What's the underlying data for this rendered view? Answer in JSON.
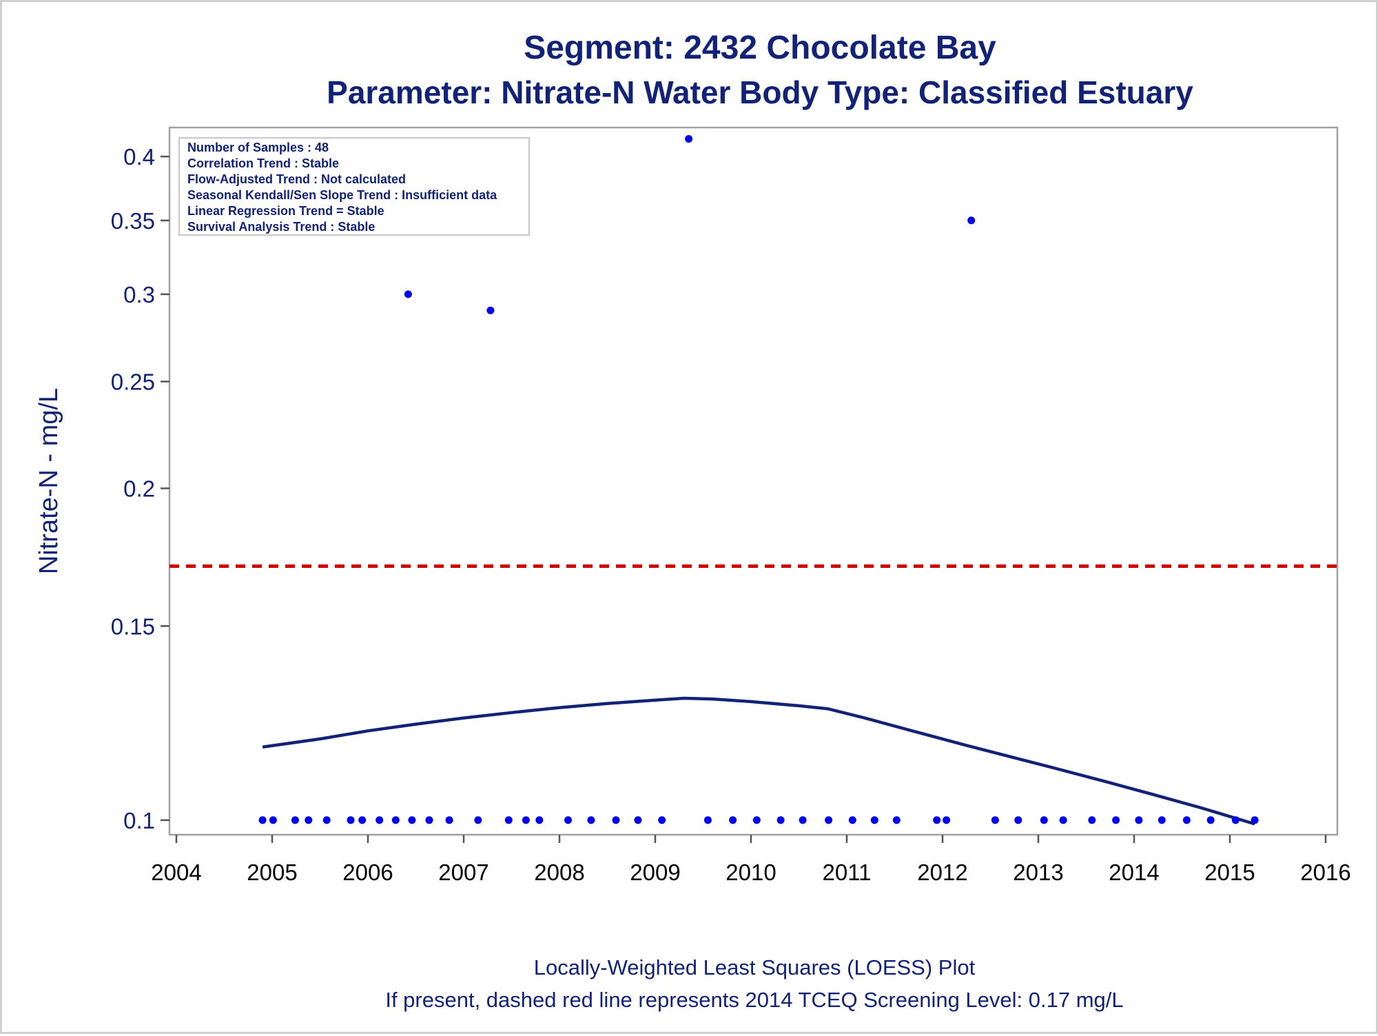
{
  "chart_data": {
    "type": "scatter",
    "title": "Segment: 2432  Chocolate Bay",
    "subtitle": "Parameter: Nitrate-N   Water Body Type: Classified Estuary",
    "xlabel": "",
    "ylabel": "Nitrate-N - mg/L",
    "x_ticks": [
      "2004",
      "2005",
      "2006",
      "2007",
      "2008",
      "2009",
      "2010",
      "2011",
      "2012",
      "2013",
      "2014",
      "2015",
      "2016"
    ],
    "y_ticks": [
      "0.1",
      "0.15",
      "0.2",
      "0.25",
      "0.3",
      "0.35",
      "0.4"
    ],
    "y_scale": "log",
    "xlim": [
      2004,
      2016
    ],
    "ylim": [
      0.097,
      0.425
    ],
    "grid": false,
    "info_box": [
      "Number of Samples : 48",
      "Correlation Trend : Stable",
      "Flow-Adjusted Trend : Not calculated",
      "Seasonal Kendall/Sen Slope Trend : Insufficient data",
      "Linear Regression Trend = Stable",
      "Survival Analysis Trend : Stable"
    ],
    "footnotes": [
      "Locally-Weighted Least Squares (LOESS) Plot",
      "If present, dashed red line represents 2014 TCEQ Screening Level: 0.17 mg/L"
    ],
    "screening_level": 0.17,
    "screening_color": "#cc0000",
    "point_color": "#0000ee",
    "line_color": "#112277",
    "points": [
      {
        "x": 2004.9,
        "y": 0.1
      },
      {
        "x": 2005.01,
        "y": 0.1
      },
      {
        "x": 2005.24,
        "y": 0.1
      },
      {
        "x": 2005.38,
        "y": 0.1
      },
      {
        "x": 2005.57,
        "y": 0.1
      },
      {
        "x": 2005.82,
        "y": 0.1
      },
      {
        "x": 2005.94,
        "y": 0.1
      },
      {
        "x": 2006.12,
        "y": 0.1
      },
      {
        "x": 2006.29,
        "y": 0.1
      },
      {
        "x": 2006.42,
        "y": 0.3
      },
      {
        "x": 2006.46,
        "y": 0.1
      },
      {
        "x": 2006.64,
        "y": 0.1
      },
      {
        "x": 2006.85,
        "y": 0.1
      },
      {
        "x": 2007.15,
        "y": 0.1
      },
      {
        "x": 2007.28,
        "y": 0.29
      },
      {
        "x": 2007.47,
        "y": 0.1
      },
      {
        "x": 2007.65,
        "y": 0.1
      },
      {
        "x": 2007.79,
        "y": 0.1
      },
      {
        "x": 2008.09,
        "y": 0.1
      },
      {
        "x": 2008.33,
        "y": 0.1
      },
      {
        "x": 2008.59,
        "y": 0.1
      },
      {
        "x": 2008.82,
        "y": 0.1
      },
      {
        "x": 2009.07,
        "y": 0.1
      },
      {
        "x": 2009.35,
        "y": 0.415
      },
      {
        "x": 2009.55,
        "y": 0.1
      },
      {
        "x": 2009.81,
        "y": 0.1
      },
      {
        "x": 2010.06,
        "y": 0.1
      },
      {
        "x": 2010.31,
        "y": 0.1
      },
      {
        "x": 2010.54,
        "y": 0.1
      },
      {
        "x": 2010.81,
        "y": 0.1
      },
      {
        "x": 2011.06,
        "y": 0.1
      },
      {
        "x": 2011.29,
        "y": 0.1
      },
      {
        "x": 2011.52,
        "y": 0.1
      },
      {
        "x": 2011.94,
        "y": 0.1
      },
      {
        "x": 2012.04,
        "y": 0.1
      },
      {
        "x": 2012.3,
        "y": 0.35
      },
      {
        "x": 2012.55,
        "y": 0.1
      },
      {
        "x": 2012.79,
        "y": 0.1
      },
      {
        "x": 2013.06,
        "y": 0.1
      },
      {
        "x": 2013.26,
        "y": 0.1
      },
      {
        "x": 2013.56,
        "y": 0.1
      },
      {
        "x": 2013.81,
        "y": 0.1
      },
      {
        "x": 2014.05,
        "y": 0.1
      },
      {
        "x": 2014.29,
        "y": 0.1
      },
      {
        "x": 2014.55,
        "y": 0.1
      },
      {
        "x": 2014.8,
        "y": 0.1
      },
      {
        "x": 2015.06,
        "y": 0.1
      },
      {
        "x": 2015.26,
        "y": 0.1
      }
    ],
    "loess": [
      {
        "x": 2004.9,
        "y": 0.1165
      },
      {
        "x": 2005.5,
        "y": 0.1185
      },
      {
        "x": 2006.0,
        "y": 0.1205
      },
      {
        "x": 2006.5,
        "y": 0.1222
      },
      {
        "x": 2007.0,
        "y": 0.1238
      },
      {
        "x": 2007.5,
        "y": 0.1252
      },
      {
        "x": 2008.0,
        "y": 0.1265
      },
      {
        "x": 2008.5,
        "y": 0.1276
      },
      {
        "x": 2009.0,
        "y": 0.1285
      },
      {
        "x": 2009.3,
        "y": 0.129
      },
      {
        "x": 2009.6,
        "y": 0.1288
      },
      {
        "x": 2010.0,
        "y": 0.1281
      },
      {
        "x": 2010.5,
        "y": 0.127
      },
      {
        "x": 2010.8,
        "y": 0.1262
      },
      {
        "x": 2011.2,
        "y": 0.1237
      },
      {
        "x": 2011.7,
        "y": 0.1204
      },
      {
        "x": 2012.2,
        "y": 0.1172
      },
      {
        "x": 2012.7,
        "y": 0.1142
      },
      {
        "x": 2013.2,
        "y": 0.1113
      },
      {
        "x": 2013.7,
        "y": 0.1084
      },
      {
        "x": 2014.2,
        "y": 0.1055
      },
      {
        "x": 2014.7,
        "y": 0.1026
      },
      {
        "x": 2015.26,
        "y": 0.0992
      }
    ]
  }
}
